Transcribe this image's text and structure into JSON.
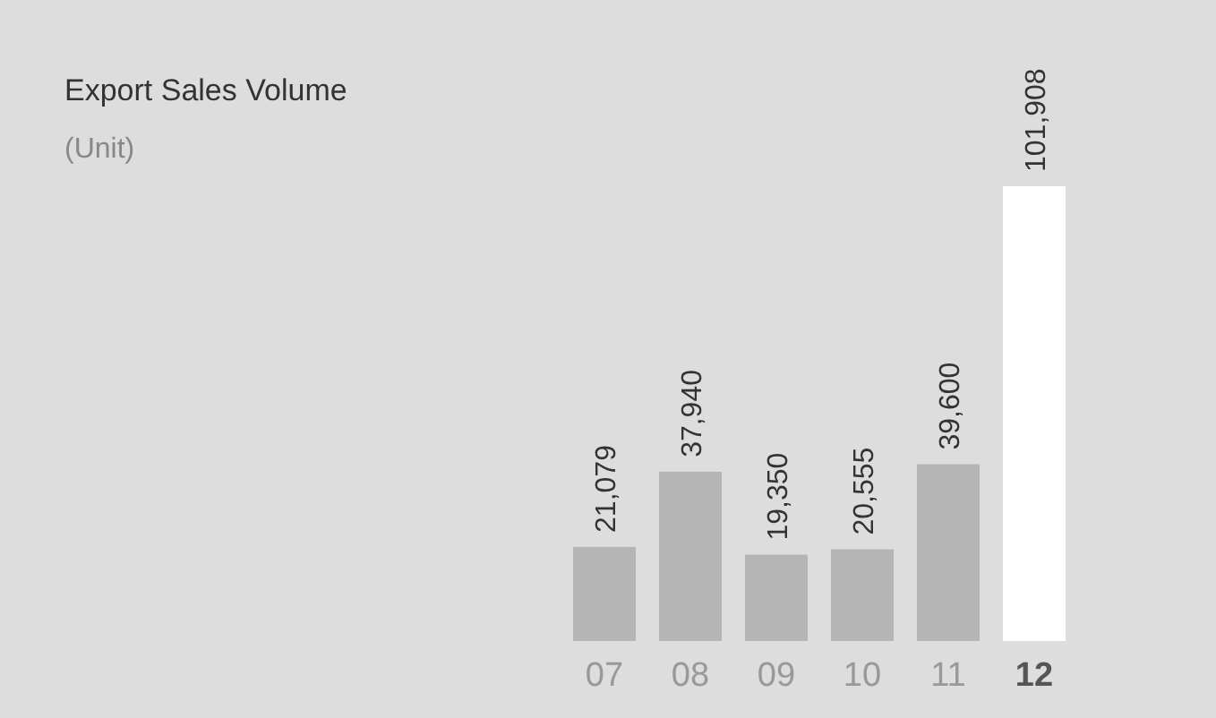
{
  "chart_data": {
    "type": "bar",
    "title": "Export Sales Volume",
    "subtitle": "(Unit)",
    "categories": [
      "07",
      "08",
      "09",
      "10",
      "11",
      "12"
    ],
    "values": [
      21079,
      37940,
      19350,
      20555,
      39600,
      101908
    ],
    "value_labels": [
      "21,079",
      "37,940",
      "19,350",
      "20,555",
      "39,600",
      "101,908"
    ],
    "colors": [
      "#b5b5b5",
      "#b5b5b5",
      "#b5b5b5",
      "#b5b5b5",
      "#b5b5b5",
      "#ffffff"
    ]
  }
}
